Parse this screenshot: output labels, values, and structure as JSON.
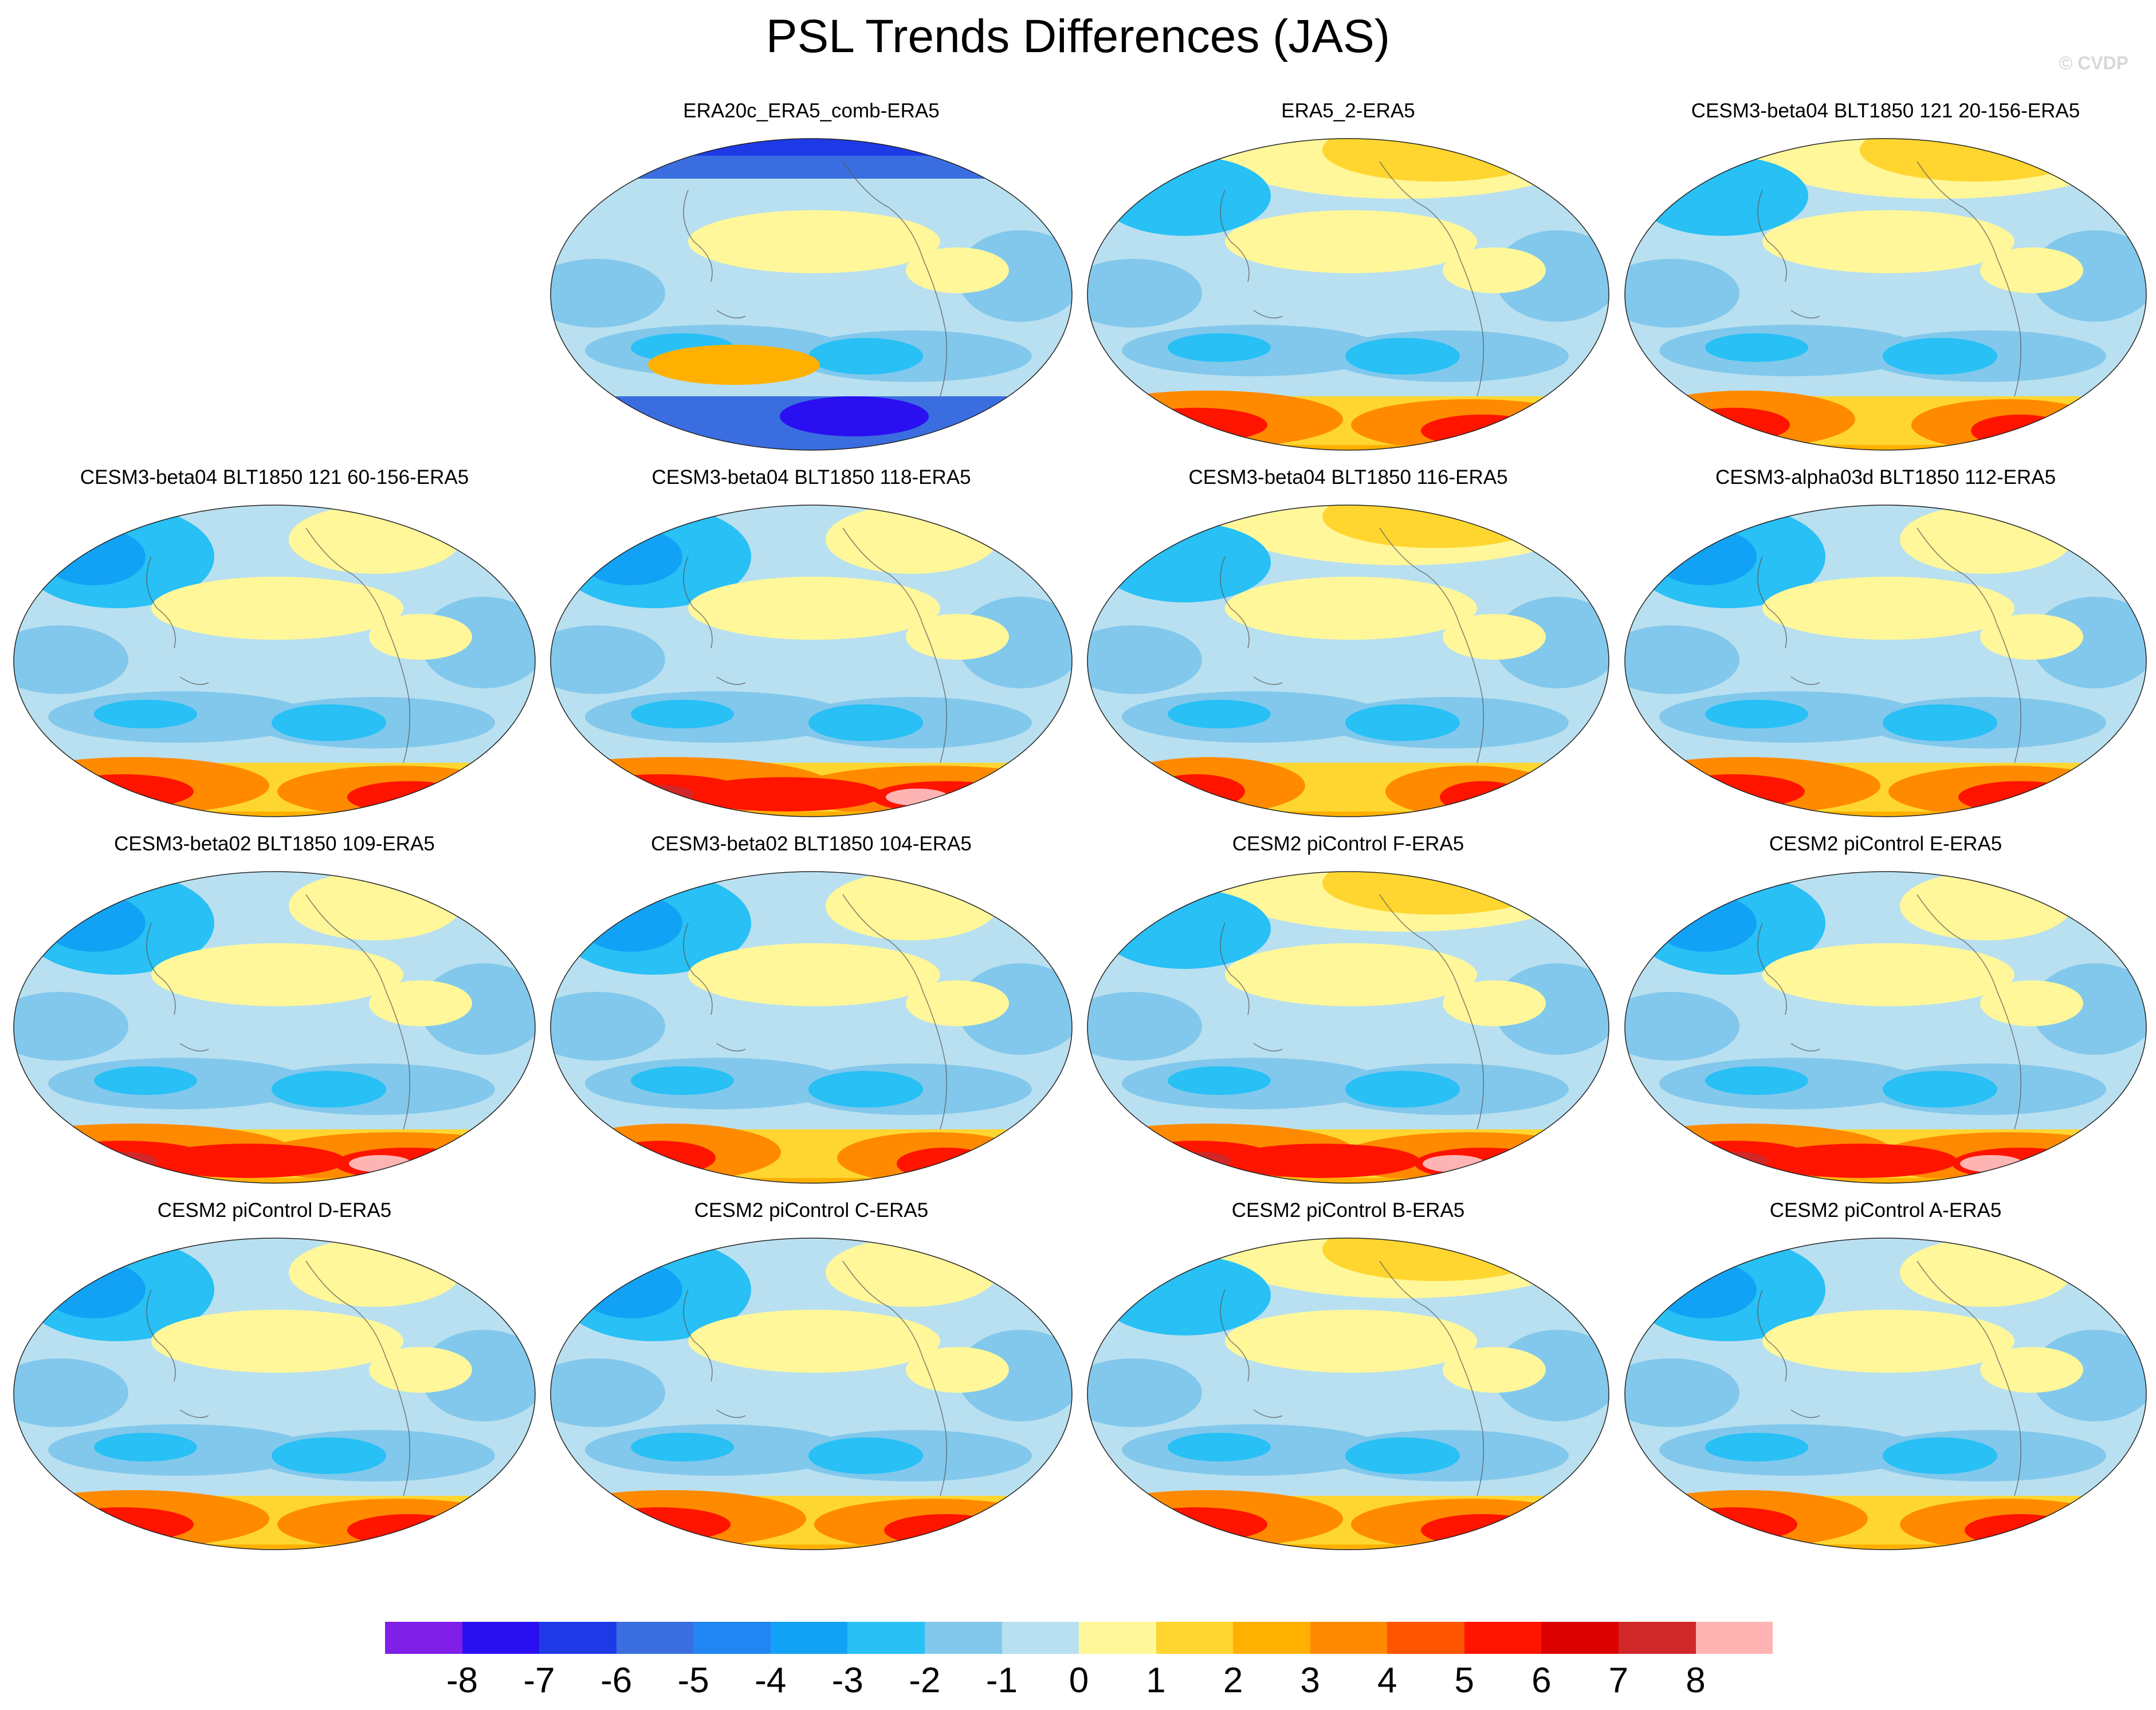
{
  "figure": {
    "title": "PSL Trends Differences (JAS)",
    "credit": "© CVDP"
  },
  "palette": [
    "#7f1fe8",
    "#2a10f0",
    "#1e3ae6",
    "#3a6ee0",
    "#2286f2",
    "#12a2f5",
    "#28c0f5",
    "#82c8ec",
    "#b9e0f0",
    "#fff79a",
    "#ffd630",
    "#ffb000",
    "#ff8a00",
    "#ff5500",
    "#ff1400",
    "#dc0000",
    "#d02828",
    "#ffb4b4"
  ],
  "legend": {
    "labels": [
      "-8",
      "-7",
      "-6",
      "-5",
      "-4",
      "-3",
      "-2",
      "-1",
      "0",
      "1",
      "2",
      "3",
      "4",
      "5",
      "6",
      "7",
      "8"
    ]
  },
  "panels": [
    {
      "title": "ERA20c_ERA5_comb-ERA5",
      "pattern": {
        "north_high": false,
        "south_positive": 0.4,
        "strong_negative": true
      }
    },
    {
      "title": "ERA5_2-ERA5",
      "pattern": {
        "north_high": true,
        "south_positive": 0.8,
        "strong_negative": false
      }
    },
    {
      "title": "CESM3-beta04 BLT1850 121 20-156-ERA5",
      "pattern": {
        "north_high": true,
        "south_positive": 0.6,
        "strong_negative": false
      }
    },
    {
      "title": "CESM3-beta04 BLT1850 121 60-156-ERA5",
      "pattern": {
        "north_high": false,
        "south_positive": 0.8,
        "strong_negative": false
      }
    },
    {
      "title": "CESM3-beta04 BLT1850 118-ERA5",
      "pattern": {
        "north_high": false,
        "south_positive": 1.0,
        "strong_negative": false
      }
    },
    {
      "title": "CESM3-beta04 BLT1850 116-ERA5",
      "pattern": {
        "north_high": true,
        "south_positive": 0.5,
        "strong_negative": false
      }
    },
    {
      "title": "CESM3-alpha03d BLT1850 112-ERA5",
      "pattern": {
        "north_high": false,
        "south_positive": 0.8,
        "strong_negative": false
      }
    },
    {
      "title": "CESM3-beta02 BLT1850 109-ERA5",
      "pattern": {
        "north_high": false,
        "south_positive": 1.0,
        "strong_negative": false
      }
    },
    {
      "title": "CESM3-beta02 BLT1850 104-ERA5",
      "pattern": {
        "north_high": false,
        "south_positive": 0.6,
        "strong_negative": false
      }
    },
    {
      "title": "CESM2 piControl F-ERA5",
      "pattern": {
        "north_high": true,
        "south_positive": 0.9,
        "strong_negative": false
      }
    },
    {
      "title": "CESM2 piControl E-ERA5",
      "pattern": {
        "north_high": false,
        "south_positive": 0.9,
        "strong_negative": false
      }
    },
    {
      "title": "CESM2 piControl D-ERA5",
      "pattern": {
        "north_high": false,
        "south_positive": 0.8,
        "strong_negative": false
      }
    },
    {
      "title": "CESM2 piControl C-ERA5",
      "pattern": {
        "north_high": false,
        "south_positive": 0.8,
        "strong_negative": false
      }
    },
    {
      "title": "CESM2 piControl B-ERA5",
      "pattern": {
        "north_high": true,
        "south_positive": 0.8,
        "strong_negative": false
      }
    },
    {
      "title": "CESM2 piControl A-ERA5",
      "pattern": {
        "north_high": false,
        "south_positive": 0.7,
        "strong_negative": false
      }
    }
  ]
}
